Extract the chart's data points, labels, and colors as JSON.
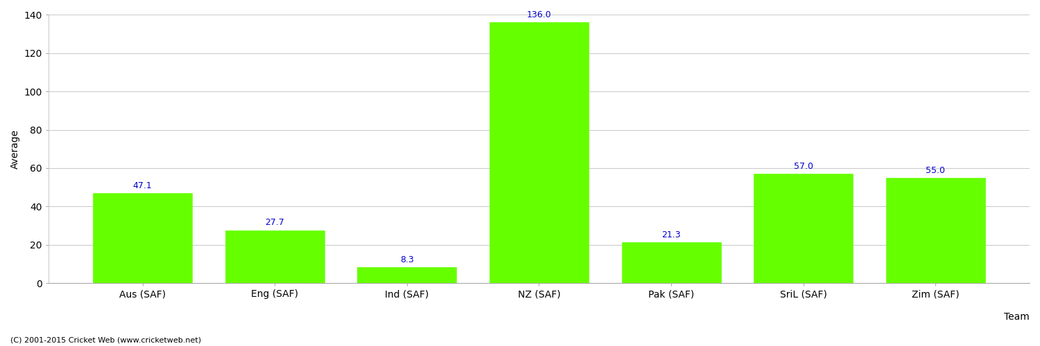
{
  "categories": [
    "Aus (SAF)",
    "Eng (SAF)",
    "Ind (SAF)",
    "NZ (SAF)",
    "Pak (SAF)",
    "SriL (SAF)",
    "Zim (SAF)"
  ],
  "values": [
    47.1,
    27.7,
    8.3,
    136.0,
    21.3,
    57.0,
    55.0
  ],
  "bar_color": "#66ff00",
  "bar_edge_color": "#66ff00",
  "label_color": "#0000cc",
  "ylabel": "Average",
  "xlabel": "Team",
  "ylim": [
    0,
    140
  ],
  "yticks": [
    0,
    20,
    40,
    60,
    80,
    100,
    120,
    140
  ],
  "grid_color": "#cccccc",
  "background_color": "#ffffff",
  "footer": "(C) 2001-2015 Cricket Web (www.cricketweb.net)",
  "label_fontsize": 9,
  "axis_fontsize": 10,
  "footer_fontsize": 8,
  "bar_width": 0.75
}
